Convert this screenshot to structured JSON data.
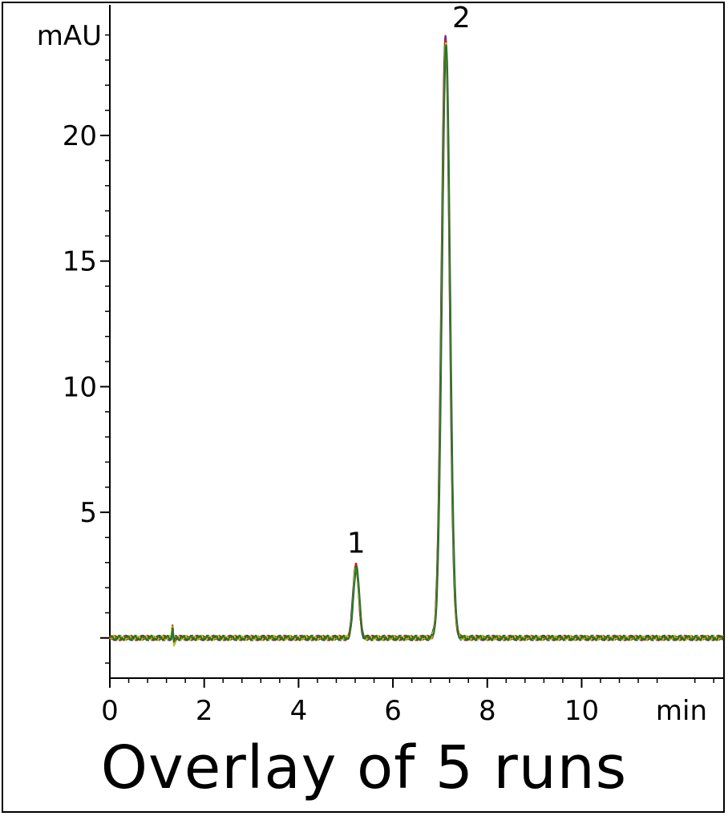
{
  "chart_data": {
    "type": "line",
    "title": "",
    "xlabel": "min",
    "ylabel": "mAU",
    "xlim": [
      0,
      13
    ],
    "ylim": [
      -1.6,
      25.2
    ],
    "x_ticks": [
      0,
      2,
      4,
      6,
      8,
      10
    ],
    "y_ticks": [
      5,
      10,
      15,
      20
    ],
    "caption": "Overlay of 5 runs",
    "series_colors": [
      "#2c2c9a",
      "#7a2a8a",
      "#d11c1c",
      "#c8c21a",
      "#1e7a1e"
    ],
    "baseline": 0,
    "injection_artifact": {
      "x": 1.33,
      "spike": 0.5,
      "dip": -0.25
    },
    "peaks": [
      {
        "label": "1",
        "x": 5.22,
        "height": 2.9,
        "width": 0.06
      },
      {
        "label": "2",
        "x": 7.12,
        "height": 24.0,
        "width": 0.085
      }
    ],
    "peak_labels": [
      {
        "text": "1",
        "x": 5.22,
        "y": 3.4
      },
      {
        "text": "2",
        "x": 7.45,
        "y": 24.3
      }
    ]
  }
}
